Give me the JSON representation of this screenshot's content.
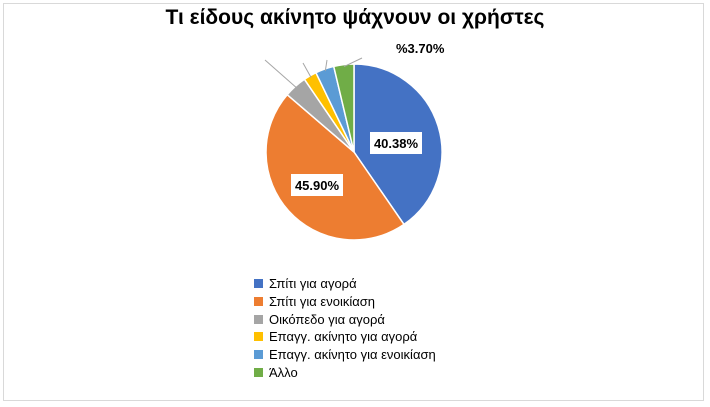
{
  "chart_data": {
    "type": "pie",
    "title": "Τι είδους ακίνητο ψάχνουν οι χρήστες",
    "legend_position": "bottom",
    "slices": [
      {
        "label": "Σπίτι για αγορά",
        "value": 40.38,
        "color": "#4472c4",
        "data_label": "40.38%"
      },
      {
        "label": "Σπίτι για ενοικίαση",
        "value": 45.9,
        "color": "#ed7d31",
        "data_label": "45.90%"
      },
      {
        "label": "Οικόπεδο για αγορά",
        "value": 4.2,
        "color": "#a5a5a5",
        "data_label": ""
      },
      {
        "label": "Επαγγ. ακίνητο για αγορά",
        "value": 2.4,
        "color": "#ffc000",
        "data_label": ""
      },
      {
        "label": "Επαγγ. ακίνητο για ενοικίαση",
        "value": 3.42,
        "color": "#5b9bd5",
        "data_label": ""
      },
      {
        "label": "Άλλο",
        "value": 3.7,
        "color": "#70ad47",
        "data_label": "%3.70%"
      }
    ]
  }
}
